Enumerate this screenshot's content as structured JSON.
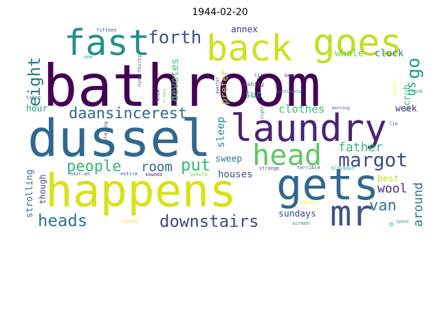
{
  "title": "1944-02-20",
  "words": [
    {
      "t": "bathroom",
      "c": "#440154"
    },
    {
      "t": "dussel",
      "c": "#31688e"
    },
    {
      "t": "happens",
      "c": "#d8e219"
    },
    {
      "t": "back",
      "c": "#d0e11c"
    },
    {
      "t": "goes",
      "c": "#c2df23"
    },
    {
      "t": "fast",
      "c": "#21918c"
    },
    {
      "t": "laundry",
      "c": "#482475"
    },
    {
      "t": "gets",
      "c": "#31688e"
    },
    {
      "t": "head",
      "c": "#5ec962"
    },
    {
      "t": "mr",
      "c": "#3b528b"
    },
    {
      "t": "forth",
      "c": "#3b528b"
    },
    {
      "t": "eight",
      "c": "#2a788e"
    },
    {
      "t": "daansincerest",
      "c": "#31688e"
    },
    {
      "t": "margot",
      "c": "#3e4989"
    },
    {
      "t": "people",
      "c": "#35b779"
    },
    {
      "t": "room",
      "c": "#31688e"
    },
    {
      "t": "put",
      "c": "#35b779"
    },
    {
      "t": "father",
      "c": "#35b779"
    },
    {
      "t": "go",
      "c": "#1f9e89"
    },
    {
      "t": "us",
      "c": "#20a486"
    },
    {
      "t": "heads",
      "c": "#2a788e"
    },
    {
      "t": "downstairs",
      "c": "#3e4989"
    },
    {
      "t": "wool",
      "c": "#472d7b"
    },
    {
      "t": "van",
      "c": "#2a788e"
    },
    {
      "t": "around",
      "c": "#2a788e"
    },
    {
      "t": "clothes",
      "c": "#44bf70"
    },
    {
      "t": "annex",
      "c": "#443983"
    },
    {
      "t": "whole",
      "c": "#6ece58"
    },
    {
      "t": "clock",
      "c": "#2a788e"
    },
    {
      "t": "scrub",
      "c": "#35b779"
    },
    {
      "t": "devotes",
      "c": "#44bf70"
    },
    {
      "t": "prefer",
      "c": "#aadc32"
    },
    {
      "t": "sun",
      "c": "#21918c"
    },
    {
      "t": "hour",
      "c": "#20a486"
    },
    {
      "t": "sleep",
      "c": "#26828e"
    },
    {
      "t": "sweep",
      "c": "#2a788e"
    },
    {
      "t": "houses",
      "c": "#3b528b"
    },
    {
      "t": "sundays",
      "c": "#3e4989"
    },
    {
      "t": "week",
      "c": "#482878"
    },
    {
      "t": "best",
      "c": "#bddf26"
    },
    {
      "t": "strolling",
      "c": "#31688e"
    },
    {
      "t": "though",
      "c": "#3e4989"
    },
    {
      "t": "fifteen",
      "c": "#3b528b"
    },
    {
      "t": "one",
      "c": "#20a486"
    },
    {
      "t": "taken",
      "c": "#2a788e"
    },
    {
      "t": "nine-thirty",
      "c": "#3b528b"
    },
    {
      "t": "know",
      "c": "#3b528b"
    },
    {
      "t": "cries",
      "c": "#7ad151"
    },
    {
      "t": "washing",
      "c": "#3e4989"
    },
    {
      "t": "lit",
      "c": "#3b528b"
    },
    {
      "t": "bed",
      "c": "#443983"
    },
    {
      "t": "quarter",
      "c": "#3b528b"
    },
    {
      "t": "sentimental",
      "c": "#2a788e"
    },
    {
      "t": "sight",
      "c": "#2a788e"
    },
    {
      "t": "morning",
      "c": "#3b528b"
    },
    {
      "t": "stoves",
      "c": "#fde725"
    },
    {
      "t": "look",
      "c": "#20a486"
    },
    {
      "t": "lie",
      "c": "#31688e"
    },
    {
      "t": "praying",
      "c": "#3b528b"
    },
    {
      "t": "hour—an",
      "c": "#3b528b"
    },
    {
      "t": "entire",
      "c": "#3b528b"
    },
    {
      "t": "sounds",
      "c": "#440154"
    },
    {
      "t": "behold",
      "c": "#7ad151"
    },
    {
      "t": "strange",
      "c": "#3b528b"
    },
    {
      "t": "terrible",
      "c": "#3e4989"
    },
    {
      "t": "blackout",
      "c": "#22a884"
    },
    {
      "t": "ordeals",
      "c": "#fde725"
    },
    {
      "t": "sunday",
      "c": "#fde725"
    },
    {
      "t": "screen",
      "c": "#2a788e"
    },
    {
      "t": "spend",
      "c": "#20a486"
    },
    {
      "t": "o",
      "c": "#20a486"
    }
  ]
}
